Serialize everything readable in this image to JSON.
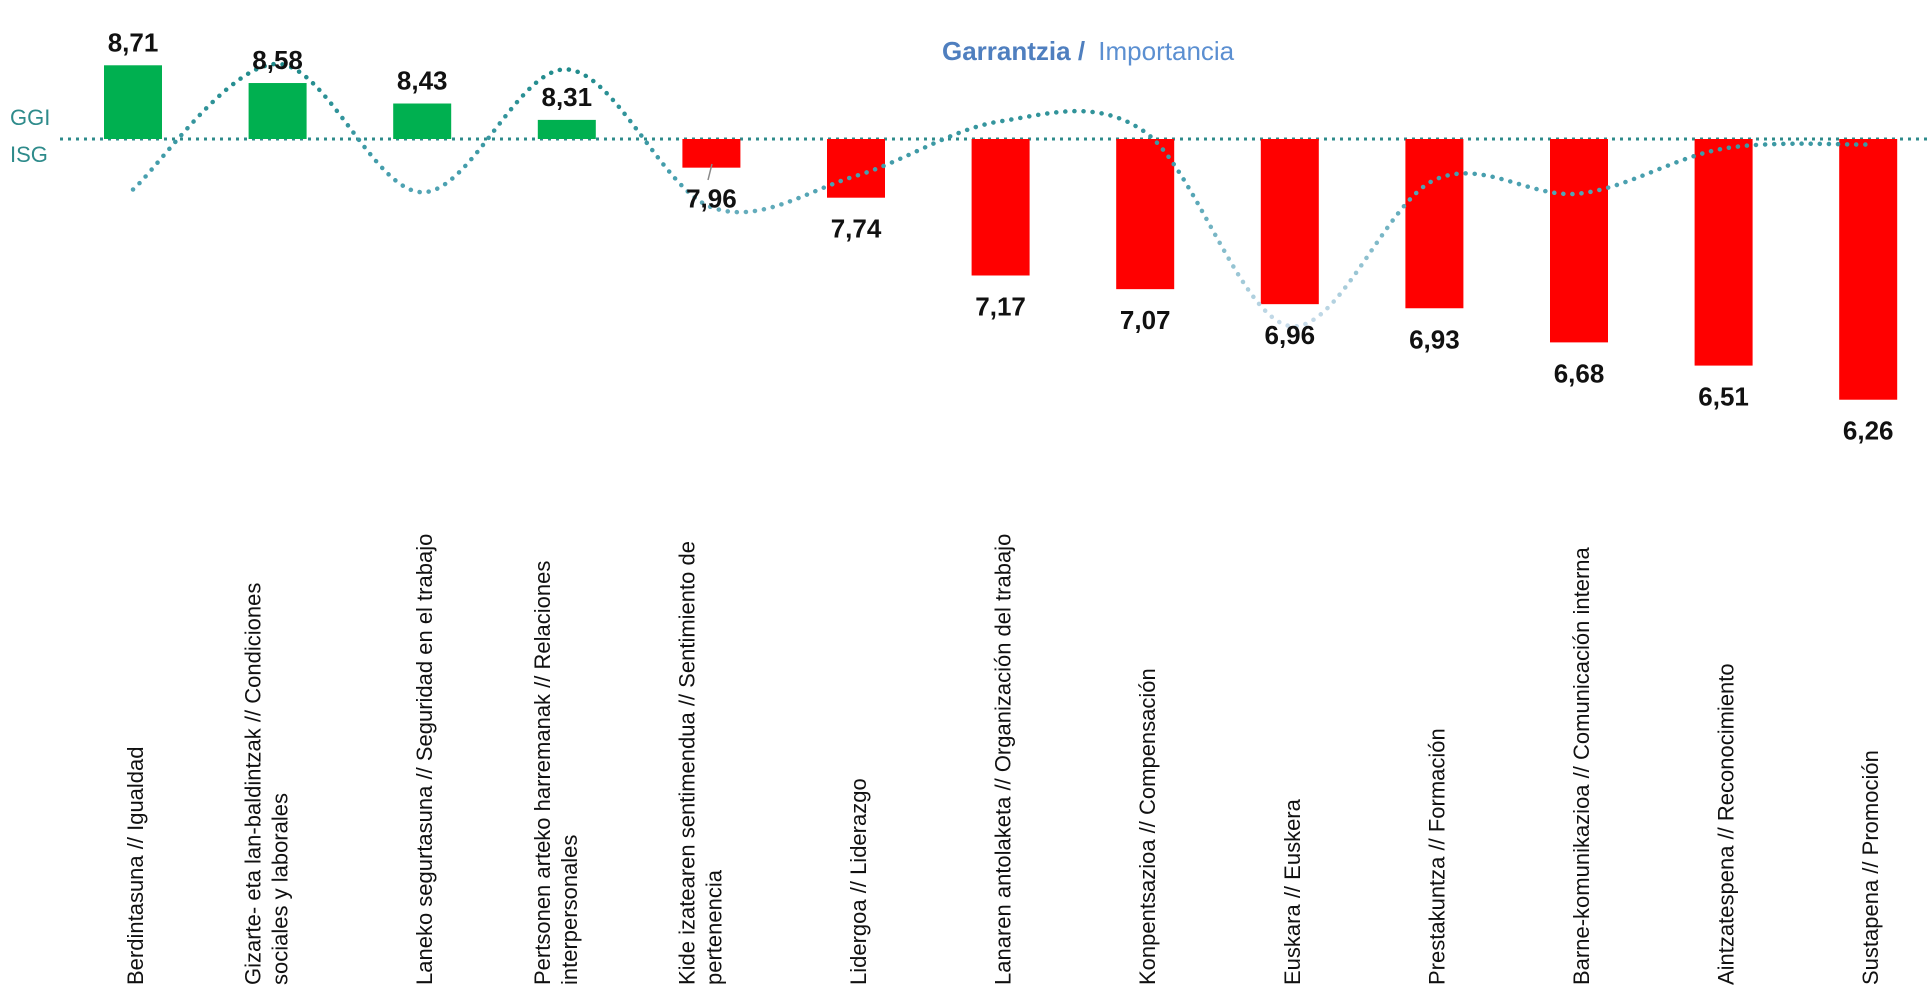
{
  "chart_data": {
    "type": "bar",
    "baseline": 8.17,
    "reference_labels": [
      "GGI",
      "ISG"
    ],
    "reference_color": "#2e8b8b",
    "legend": {
      "bold": "Garrantzia /",
      "normal": "Importancia",
      "bold_color": "#4f7fbf",
      "normal_color": "#5b8fd1"
    },
    "value_labels": [
      "8,71",
      "8,58",
      "8,43",
      "8,31",
      "7,96",
      "7,74",
      "7,17",
      "7,07",
      "6,96",
      "6,93",
      "6,68",
      "6,51",
      "6,26"
    ],
    "categories": [
      [
        "Berdintasuna // Igualdad"
      ],
      [
        "Gizarte- eta lan-baldintzak // Condiciones",
        "sociales y laborales"
      ],
      [
        "Laneko segurtasuna // Seguridad en el trabajo"
      ],
      [
        "Pertsonen arteko harremanak // Relaciones",
        "interpersonales"
      ],
      [
        "Kide izatearen sentimendua // Sentimiento de",
        "pertenencia"
      ],
      [
        "Lidergoa // Liderazgo"
      ],
      [
        "Lanaren antolaketa // Organización del trabajo"
      ],
      [
        "Konpentsazioa // Compensación"
      ],
      [
        "Euskara // Euskera"
      ],
      [
        "Prestakuntza // Formación"
      ],
      [
        "Barne-komunikazioa // Comunicación interna"
      ],
      [
        "Aintzatespena // Reconocimiento"
      ],
      [
        "Sustapena // Promoción"
      ]
    ],
    "values": [
      8.71,
      8.58,
      8.43,
      8.31,
      7.96,
      7.74,
      7.17,
      7.07,
      6.96,
      6.93,
      6.68,
      6.51,
      6.26
    ],
    "colors": {
      "above": "#00b050",
      "below": "#ff0000"
    },
    "importance_series": {
      "legend_ref": "Garrantzia / Importancia",
      "values": [
        7.8,
        8.72,
        7.78,
        8.68,
        7.67,
        7.9,
        8.3,
        8.22,
        6.8,
        7.87,
        7.77,
        8.1,
        8.13
      ]
    }
  }
}
